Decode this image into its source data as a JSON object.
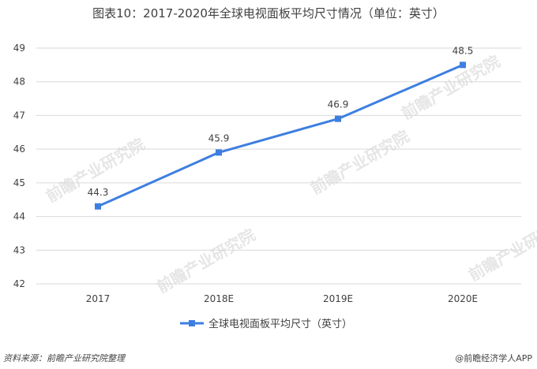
{
  "title": "图表10：2017-2020年全球电视面板平均尺寸情况（单位：英寸）",
  "source": "资料来源：前瞻产业研究院整理",
  "brand": "@前瞻经济学人APP",
  "watermark": "前瞻产业研究院",
  "chart_data": {
    "type": "line",
    "title": "图表10：2017-2020年全球电视面板平均尺寸情况（单位：英寸）",
    "categories": [
      "2017",
      "2018E",
      "2019E",
      "2020E"
    ],
    "series": [
      {
        "name": "全球电视面板平均尺寸（英寸）",
        "values": [
          44.3,
          45.9,
          46.9,
          48.5
        ],
        "color": "#3d7fe0"
      }
    ],
    "data_labels": [
      "44.3",
      "45.9",
      "46.9",
      "48.5"
    ],
    "ylim": [
      42,
      49
    ],
    "yticks": [
      "42",
      "43",
      "44",
      "45",
      "46",
      "47",
      "48",
      "49"
    ],
    "grid": true,
    "legend": "bottom-center",
    "colors": {
      "series": "#3d7fe0",
      "grid": "#d9d9d9",
      "text": "#404040"
    }
  }
}
